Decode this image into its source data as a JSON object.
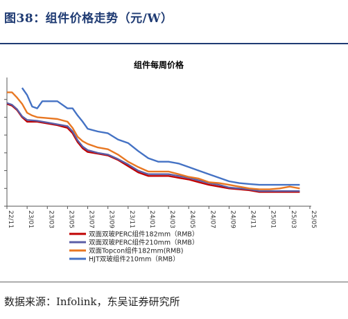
{
  "header": {
    "caption": "图38：组件价格走势（元/W）"
  },
  "footer": {
    "source": "数据来源：Infolink，东吴证券研究所"
  },
  "chart_data": {
    "type": "line",
    "title": "组件每周价格",
    "xlabel": "",
    "ylabel": "",
    "x_ticks": [
      "22/11",
      "23/01",
      "23/03",
      "23/05",
      "23/07",
      "23/09",
      "23/11",
      "24/01",
      "24/03",
      "24/05",
      "24/07",
      "24/09",
      "24/11",
      "25/01",
      "25/03",
      "25/05"
    ],
    "x_range": [
      0,
      30
    ],
    "y_range": [
      0.6,
      2.0
    ],
    "y_ticks": [
      0.6,
      0.8,
      1.0,
      1.2,
      1.4,
      1.6,
      1.8
    ],
    "y_tick_labels_visible": false,
    "grid": false,
    "legend_position": "bottom-left",
    "series": [
      {
        "name": "双面双玻PERC组件182mm（RMB）",
        "color": "#c00000",
        "points": [
          [
            0,
            1.75
          ],
          [
            0.5,
            1.73
          ],
          [
            1,
            1.68
          ],
          [
            1.5,
            1.6
          ],
          [
            2,
            1.55
          ],
          [
            3,
            1.55
          ],
          [
            4,
            1.53
          ],
          [
            5,
            1.51
          ],
          [
            6,
            1.48
          ],
          [
            6.5,
            1.42
          ],
          [
            7,
            1.32
          ],
          [
            7.5,
            1.25
          ],
          [
            8,
            1.21
          ],
          [
            9,
            1.19
          ],
          [
            10,
            1.17
          ],
          [
            11,
            1.12
          ],
          [
            12,
            1.05
          ],
          [
            13,
            0.98
          ],
          [
            14,
            0.94
          ],
          [
            15,
            0.94
          ],
          [
            16,
            0.94
          ],
          [
            17,
            0.92
          ],
          [
            18,
            0.9
          ],
          [
            19,
            0.87
          ],
          [
            20,
            0.84
          ],
          [
            21,
            0.82
          ],
          [
            22,
            0.8
          ],
          [
            23,
            0.79
          ],
          [
            24,
            0.78
          ],
          [
            25,
            0.76
          ],
          [
            26,
            0.76
          ],
          [
            27,
            0.76
          ],
          [
            28,
            0.76
          ],
          [
            29,
            0.76
          ]
        ]
      },
      {
        "name": "双面双玻PERC组件210mm（RMB）",
        "color": "#5b5ea6",
        "points": [
          [
            0,
            1.76
          ],
          [
            0.5,
            1.74
          ],
          [
            1,
            1.69
          ],
          [
            1.5,
            1.61
          ],
          [
            2,
            1.57
          ],
          [
            3,
            1.56
          ],
          [
            4,
            1.54
          ],
          [
            5,
            1.52
          ],
          [
            6,
            1.5
          ],
          [
            6.5,
            1.44
          ],
          [
            7,
            1.34
          ],
          [
            7.5,
            1.27
          ],
          [
            8,
            1.23
          ],
          [
            9,
            1.2
          ],
          [
            10,
            1.18
          ],
          [
            11,
            1.13
          ],
          [
            12,
            1.07
          ],
          [
            13,
            1.0
          ],
          [
            14,
            0.96
          ],
          [
            15,
            0.96
          ],
          [
            16,
            0.96
          ],
          [
            17,
            0.94
          ],
          [
            18,
            0.92
          ],
          [
            19,
            0.89
          ],
          [
            20,
            0.86
          ],
          [
            21,
            0.84
          ],
          [
            22,
            0.81
          ],
          [
            23,
            0.8
          ],
          [
            24,
            0.79
          ],
          [
            25,
            0.77
          ],
          [
            26,
            0.77
          ],
          [
            27,
            0.77
          ],
          [
            28,
            0.77
          ],
          [
            29,
            0.77
          ]
        ]
      },
      {
        "name": "双面Topcon组件182mm(RMB)",
        "color": "#e87722",
        "points": [
          [
            0,
            1.88
          ],
          [
            0.5,
            1.88
          ],
          [
            1,
            1.82
          ],
          [
            1.5,
            1.75
          ],
          [
            2,
            1.65
          ],
          [
            2.5,
            1.62
          ],
          [
            3,
            1.6
          ],
          [
            4,
            1.59
          ],
          [
            5,
            1.58
          ],
          [
            6,
            1.55
          ],
          [
            6.5,
            1.48
          ],
          [
            7,
            1.38
          ],
          [
            7.5,
            1.33
          ],
          [
            8,
            1.3
          ],
          [
            9,
            1.26
          ],
          [
            10,
            1.24
          ],
          [
            11,
            1.18
          ],
          [
            12,
            1.1
          ],
          [
            13,
            1.04
          ],
          [
            14,
            0.99
          ],
          [
            15,
            0.99
          ],
          [
            16,
            0.99
          ],
          [
            17,
            0.96
          ],
          [
            18,
            0.93
          ],
          [
            19,
            0.91
          ],
          [
            20,
            0.87
          ],
          [
            21,
            0.86
          ],
          [
            22,
            0.84
          ],
          [
            23,
            0.82
          ],
          [
            24,
            0.8
          ],
          [
            25,
            0.79
          ],
          [
            26,
            0.79
          ],
          [
            27,
            0.8
          ],
          [
            28,
            0.82
          ],
          [
            28.5,
            0.81
          ],
          [
            29,
            0.8
          ]
        ]
      },
      {
        "name": "HJT双玻组件210mm（RMB）",
        "color": "#4472c4",
        "points": [
          [
            1.5,
            1.93
          ],
          [
            2,
            1.85
          ],
          [
            2.5,
            1.72
          ],
          [
            3,
            1.7
          ],
          [
            3.5,
            1.78
          ],
          [
            4,
            1.78
          ],
          [
            5,
            1.78
          ],
          [
            6,
            1.7
          ],
          [
            6.5,
            1.7
          ],
          [
            7,
            1.62
          ],
          [
            7.5,
            1.55
          ],
          [
            8,
            1.47
          ],
          [
            9,
            1.44
          ],
          [
            10,
            1.42
          ],
          [
            11,
            1.35
          ],
          [
            12,
            1.31
          ],
          [
            13,
            1.22
          ],
          [
            14,
            1.14
          ],
          [
            15,
            1.1
          ],
          [
            16,
            1.1
          ],
          [
            17,
            1.08
          ],
          [
            18,
            1.04
          ],
          [
            19,
            1.0
          ],
          [
            20,
            0.96
          ],
          [
            21,
            0.92
          ],
          [
            22,
            0.88
          ],
          [
            23,
            0.86
          ],
          [
            24,
            0.85
          ],
          [
            25,
            0.84
          ],
          [
            26,
            0.84
          ],
          [
            27,
            0.84
          ],
          [
            28,
            0.84
          ],
          [
            29,
            0.84
          ]
        ]
      }
    ]
  }
}
